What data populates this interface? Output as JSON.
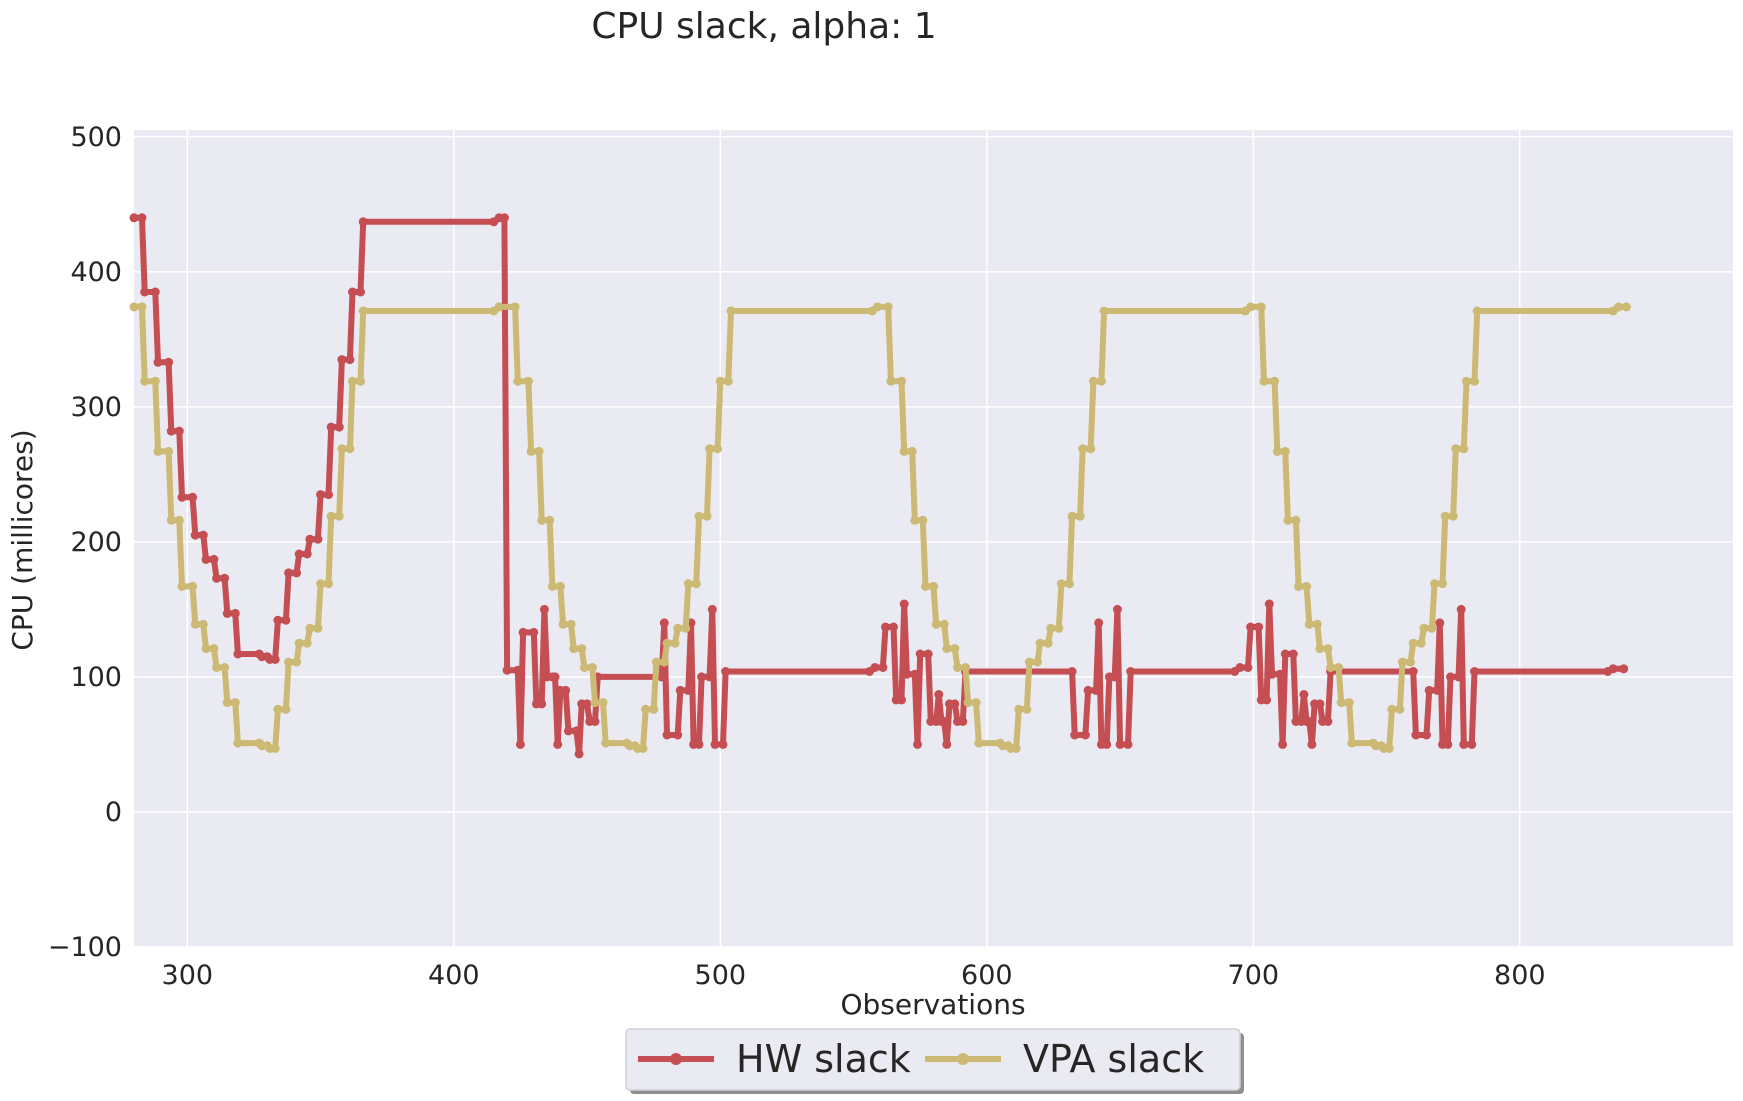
{
  "chart_data": {
    "type": "line",
    "title": "CPU slack, alpha: 1",
    "xlabel": "Observations",
    "ylabel": "CPU (millicores)",
    "xlim": [
      280,
      880
    ],
    "ylim": [
      -100,
      505
    ],
    "xticks": [
      300,
      400,
      500,
      600,
      700,
      800
    ],
    "yticks": [
      -100,
      0,
      100,
      200,
      300,
      400,
      500
    ],
    "ytick_labels": [
      "−100",
      "0",
      "100",
      "200",
      "300",
      "400",
      "500"
    ],
    "grid": true,
    "legend_position": "bottom-center",
    "series": [
      {
        "name": "HW slack",
        "color": "#c44e52",
        "points": [
          [
            280,
            440
          ],
          [
            283,
            440
          ],
          [
            284,
            385
          ],
          [
            288,
            385
          ],
          [
            289,
            333
          ],
          [
            293,
            333
          ],
          [
            294,
            282
          ],
          [
            297,
            282
          ],
          [
            298,
            233
          ],
          [
            302,
            233
          ],
          [
            303,
            205
          ],
          [
            306,
            205
          ],
          [
            307,
            187
          ],
          [
            310,
            187
          ],
          [
            311,
            173
          ],
          [
            314,
            173
          ],
          [
            315,
            147
          ],
          [
            318,
            147
          ],
          [
            319,
            117
          ],
          [
            327,
            117
          ],
          [
            328,
            115
          ],
          [
            330,
            115
          ],
          [
            331,
            113
          ],
          [
            333,
            113
          ],
          [
            334,
            142
          ],
          [
            337,
            142
          ],
          [
            338,
            177
          ],
          [
            341,
            177
          ],
          [
            342,
            191
          ],
          [
            345,
            191
          ],
          [
            346,
            202
          ],
          [
            349,
            202
          ],
          [
            350,
            235
          ],
          [
            353,
            235
          ],
          [
            354,
            285
          ],
          [
            357,
            285
          ],
          [
            358,
            335
          ],
          [
            361,
            335
          ],
          [
            362,
            385
          ],
          [
            365,
            385
          ],
          [
            366,
            437
          ],
          [
            415,
            437
          ],
          [
            417,
            440
          ],
          [
            419,
            440
          ],
          [
            420,
            105
          ],
          [
            424,
            105
          ],
          [
            425,
            50
          ],
          [
            426,
            133
          ],
          [
            430,
            133
          ],
          [
            431,
            80
          ],
          [
            433,
            80
          ],
          [
            434,
            150
          ],
          [
            435,
            100
          ],
          [
            437,
            100
          ],
          [
            438,
            100
          ],
          [
            439,
            50
          ],
          [
            440,
            90
          ],
          [
            442,
            90
          ],
          [
            443,
            60
          ],
          [
            446,
            60
          ],
          [
            447,
            43
          ],
          [
            448,
            80
          ],
          [
            450,
            80
          ],
          [
            451,
            67
          ],
          [
            453,
            67
          ],
          [
            454,
            100
          ],
          [
            478,
            100
          ],
          [
            479,
            140
          ],
          [
            480,
            57
          ],
          [
            484,
            57
          ],
          [
            485,
            90
          ],
          [
            488,
            90
          ],
          [
            489,
            140
          ],
          [
            490,
            50
          ],
          [
            492,
            50
          ],
          [
            493,
            100
          ],
          [
            496,
            100
          ],
          [
            497,
            150
          ],
          [
            498,
            50
          ],
          [
            501,
            50
          ],
          [
            502,
            104
          ],
          [
            556,
            104
          ],
          [
            558,
            107
          ],
          [
            561,
            107
          ],
          [
            562,
            137
          ],
          [
            565,
            137
          ],
          [
            566,
            83
          ],
          [
            568,
            83
          ],
          [
            569,
            154
          ],
          [
            570,
            102
          ],
          [
            573,
            102
          ],
          [
            574,
            50
          ],
          [
            575,
            117
          ],
          [
            578,
            117
          ],
          [
            579,
            67
          ],
          [
            581,
            67
          ],
          [
            582,
            87
          ],
          [
            583,
            67
          ],
          [
            584,
            67
          ],
          [
            585,
            50
          ],
          [
            586,
            80
          ],
          [
            588,
            80
          ],
          [
            589,
            67
          ],
          [
            591,
            67
          ],
          [
            592,
            104
          ],
          [
            632,
            104
          ],
          [
            633,
            57
          ],
          [
            637,
            57
          ],
          [
            638,
            90
          ],
          [
            641,
            90
          ],
          [
            642,
            140
          ],
          [
            643,
            50
          ],
          [
            645,
            50
          ],
          [
            646,
            100
          ],
          [
            648,
            100
          ],
          [
            649,
            150
          ],
          [
            650,
            50
          ],
          [
            653,
            50
          ],
          [
            654,
            104
          ],
          [
            693,
            104
          ],
          [
            695,
            107
          ],
          [
            698,
            107
          ],
          [
            699,
            137
          ],
          [
            702,
            137
          ],
          [
            703,
            83
          ],
          [
            705,
            83
          ],
          [
            706,
            154
          ],
          [
            707,
            102
          ],
          [
            710,
            102
          ],
          [
            711,
            50
          ],
          [
            712,
            117
          ],
          [
            715,
            117
          ],
          [
            716,
            67
          ],
          [
            718,
            67
          ],
          [
            719,
            87
          ],
          [
            720,
            67
          ],
          [
            721,
            67
          ],
          [
            722,
            50
          ],
          [
            723,
            80
          ],
          [
            725,
            80
          ],
          [
            726,
            67
          ],
          [
            728,
            67
          ],
          [
            729,
            104
          ],
          [
            760,
            104
          ],
          [
            761,
            57
          ],
          [
            765,
            57
          ],
          [
            766,
            90
          ],
          [
            769,
            90
          ],
          [
            770,
            140
          ],
          [
            771,
            50
          ],
          [
            773,
            50
          ],
          [
            774,
            100
          ],
          [
            777,
            100
          ],
          [
            778,
            150
          ],
          [
            779,
            50
          ],
          [
            782,
            50
          ],
          [
            783,
            104
          ],
          [
            833,
            104
          ],
          [
            835,
            106
          ],
          [
            839,
            106
          ]
        ]
      },
      {
        "name": "VPA slack",
        "color": "#ccb974",
        "points": [
          [
            280,
            374
          ],
          [
            283,
            374
          ],
          [
            284,
            319
          ],
          [
            288,
            319
          ],
          [
            289,
            267
          ],
          [
            293,
            267
          ],
          [
            294,
            216
          ],
          [
            297,
            216
          ],
          [
            298,
            167
          ],
          [
            302,
            167
          ],
          [
            303,
            139
          ],
          [
            306,
            139
          ],
          [
            307,
            121
          ],
          [
            310,
            121
          ],
          [
            311,
            107
          ],
          [
            314,
            107
          ],
          [
            315,
            81
          ],
          [
            318,
            81
          ],
          [
            319,
            51
          ],
          [
            327,
            51
          ],
          [
            328,
            49
          ],
          [
            330,
            49
          ],
          [
            331,
            47
          ],
          [
            333,
            47
          ],
          [
            334,
            76
          ],
          [
            337,
            76
          ],
          [
            338,
            111
          ],
          [
            341,
            111
          ],
          [
            342,
            125
          ],
          [
            345,
            125
          ],
          [
            346,
            136
          ],
          [
            349,
            136
          ],
          [
            350,
            169
          ],
          [
            353,
            169
          ],
          [
            354,
            219
          ],
          [
            357,
            219
          ],
          [
            358,
            269
          ],
          [
            361,
            269
          ],
          [
            362,
            319
          ],
          [
            365,
            319
          ],
          [
            366,
            371
          ],
          [
            415,
            371
          ],
          [
            417,
            374
          ],
          [
            423,
            374
          ],
          [
            424,
            319
          ],
          [
            428,
            319
          ],
          [
            429,
            267
          ],
          [
            432,
            267
          ],
          [
            433,
            216
          ],
          [
            436,
            216
          ],
          [
            437,
            167
          ],
          [
            440,
            167
          ],
          [
            441,
            139
          ],
          [
            444,
            139
          ],
          [
            445,
            121
          ],
          [
            448,
            121
          ],
          [
            449,
            107
          ],
          [
            452,
            107
          ],
          [
            453,
            81
          ],
          [
            456,
            81
          ],
          [
            457,
            51
          ],
          [
            465,
            51
          ],
          [
            466,
            49
          ],
          [
            468,
            49
          ],
          [
            469,
            47
          ],
          [
            471,
            47
          ],
          [
            472,
            76
          ],
          [
            475,
            76
          ],
          [
            476,
            111
          ],
          [
            479,
            111
          ],
          [
            480,
            125
          ],
          [
            483,
            125
          ],
          [
            484,
            136
          ],
          [
            487,
            136
          ],
          [
            488,
            169
          ],
          [
            491,
            169
          ],
          [
            492,
            219
          ],
          [
            495,
            219
          ],
          [
            496,
            269
          ],
          [
            499,
            269
          ],
          [
            500,
            319
          ],
          [
            503,
            319
          ],
          [
            504,
            371
          ],
          [
            557,
            371
          ],
          [
            559,
            374
          ],
          [
            563,
            374
          ],
          [
            564,
            319
          ],
          [
            568,
            319
          ],
          [
            569,
            267
          ],
          [
            572,
            267
          ],
          [
            573,
            216
          ],
          [
            576,
            216
          ],
          [
            577,
            167
          ],
          [
            580,
            167
          ],
          [
            581,
            139
          ],
          [
            584,
            139
          ],
          [
            585,
            121
          ],
          [
            588,
            121
          ],
          [
            589,
            107
          ],
          [
            592,
            107
          ],
          [
            593,
            81
          ],
          [
            596,
            81
          ],
          [
            597,
            51
          ],
          [
            605,
            51
          ],
          [
            606,
            49
          ],
          [
            608,
            49
          ],
          [
            609,
            47
          ],
          [
            611,
            47
          ],
          [
            612,
            76
          ],
          [
            615,
            76
          ],
          [
            616,
            111
          ],
          [
            619,
            111
          ],
          [
            620,
            125
          ],
          [
            623,
            125
          ],
          [
            624,
            136
          ],
          [
            627,
            136
          ],
          [
            628,
            169
          ],
          [
            631,
            169
          ],
          [
            632,
            219
          ],
          [
            635,
            219
          ],
          [
            636,
            269
          ],
          [
            639,
            269
          ],
          [
            640,
            319
          ],
          [
            643,
            319
          ],
          [
            644,
            371
          ],
          [
            697,
            371
          ],
          [
            699,
            374
          ],
          [
            703,
            374
          ],
          [
            704,
            319
          ],
          [
            708,
            319
          ],
          [
            709,
            267
          ],
          [
            712,
            267
          ],
          [
            713,
            216
          ],
          [
            716,
            216
          ],
          [
            717,
            167
          ],
          [
            720,
            167
          ],
          [
            721,
            139
          ],
          [
            724,
            139
          ],
          [
            725,
            121
          ],
          [
            728,
            121
          ],
          [
            729,
            107
          ],
          [
            732,
            107
          ],
          [
            733,
            81
          ],
          [
            736,
            81
          ],
          [
            737,
            51
          ],
          [
            745,
            51
          ],
          [
            746,
            49
          ],
          [
            748,
            49
          ],
          [
            749,
            47
          ],
          [
            751,
            47
          ],
          [
            752,
            76
          ],
          [
            755,
            76
          ],
          [
            756,
            111
          ],
          [
            759,
            111
          ],
          [
            760,
            125
          ],
          [
            763,
            125
          ],
          [
            764,
            136
          ],
          [
            767,
            136
          ],
          [
            768,
            169
          ],
          [
            771,
            169
          ],
          [
            772,
            219
          ],
          [
            775,
            219
          ],
          [
            776,
            269
          ],
          [
            779,
            269
          ],
          [
            780,
            319
          ],
          [
            783,
            319
          ],
          [
            784,
            371
          ],
          [
            835,
            371
          ],
          [
            837,
            374
          ],
          [
            840,
            374
          ]
        ]
      }
    ]
  }
}
